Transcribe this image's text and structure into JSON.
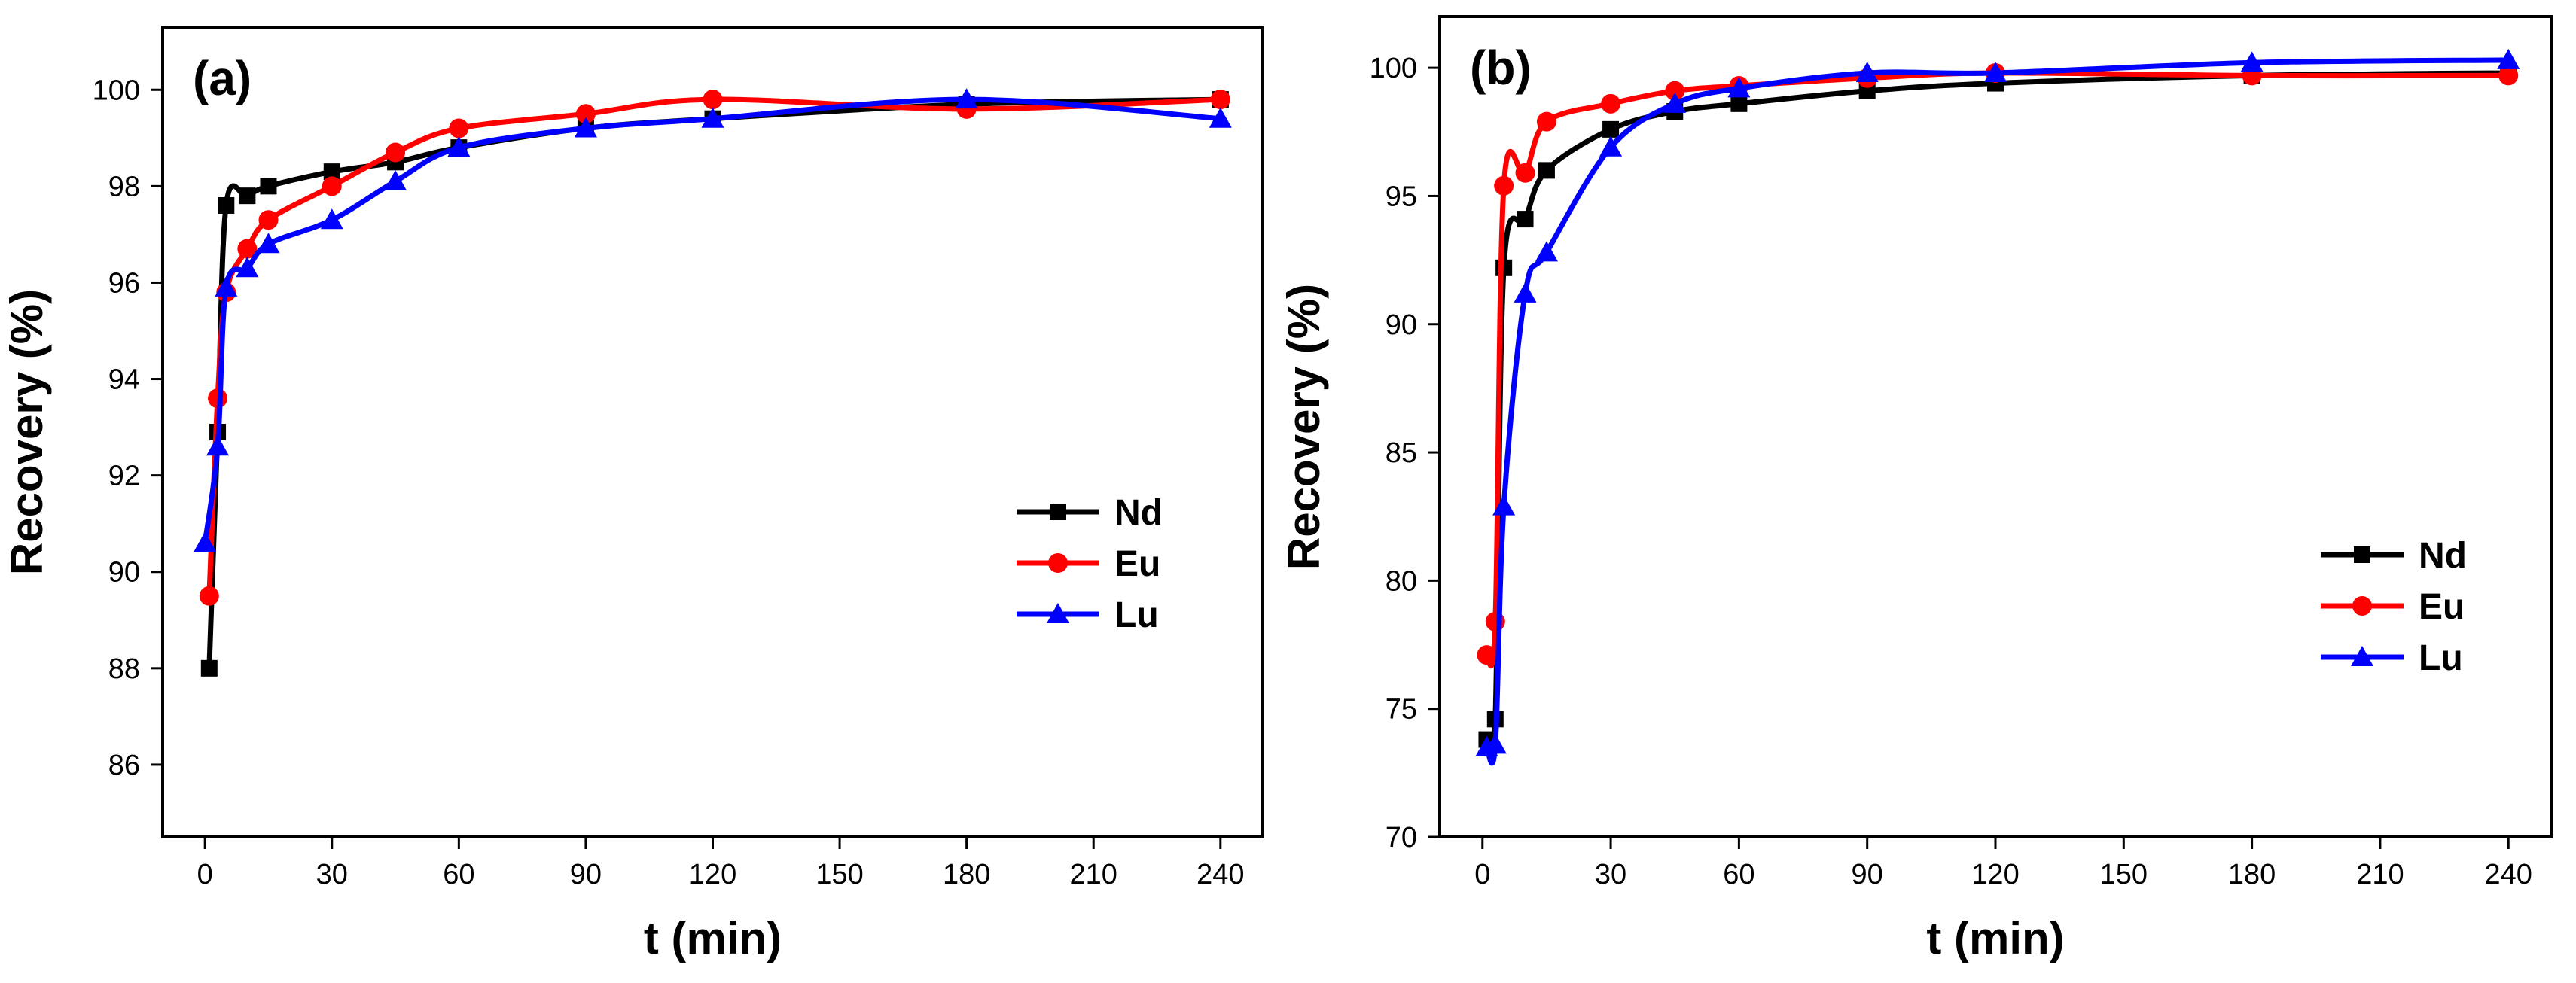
{
  "colors": {
    "Nd": "#000000",
    "Eu": "#ff0000",
    "Lu": "#0000ff",
    "axis": "#000000",
    "background": "#ffffff"
  },
  "markers": {
    "Nd": "square",
    "Eu": "circle",
    "Lu": "triangle"
  },
  "chart_data": [
    {
      "type": "line",
      "panel_label": "(a)",
      "xlabel": "t (min)",
      "ylabel": "Recovery (%)",
      "xlim": [
        -10,
        250
      ],
      "ylim": [
        84.5,
        101.3
      ],
      "xticks": [
        0,
        30,
        60,
        90,
        120,
        150,
        180,
        210,
        240
      ],
      "yticks": [
        86,
        88,
        90,
        92,
        94,
        96,
        98,
        100
      ],
      "legend_position": "center-right",
      "series": [
        {
          "name": "Nd",
          "x": [
            1,
            3,
            5,
            10,
            15,
            30,
            45,
            60,
            90,
            120,
            180,
            240
          ],
          "y": [
            88.0,
            92.9,
            97.6,
            97.8,
            98.0,
            98.3,
            98.5,
            98.8,
            99.2,
            99.4,
            99.7,
            99.8
          ]
        },
        {
          "name": "Eu",
          "x": [
            1,
            3,
            5,
            10,
            15,
            30,
            45,
            60,
            90,
            120,
            180,
            240
          ],
          "y": [
            89.5,
            93.6,
            95.8,
            96.7,
            97.3,
            98.0,
            98.7,
            99.2,
            99.5,
            99.8,
            99.6,
            99.8
          ]
        },
        {
          "name": "Lu",
          "x": [
            0,
            3,
            5,
            10,
            15,
            30,
            45,
            60,
            90,
            120,
            180,
            240
          ],
          "y": [
            90.6,
            92.6,
            95.9,
            96.3,
            96.8,
            97.3,
            98.1,
            98.8,
            99.2,
            99.4,
            99.8,
            99.4
          ]
        }
      ]
    },
    {
      "type": "line",
      "panel_label": "(b)",
      "xlabel": "t (min)",
      "ylabel": "Recovery (%)",
      "xlim": [
        -10,
        250
      ],
      "ylim": [
        70,
        102
      ],
      "xticks": [
        0,
        30,
        60,
        90,
        120,
        150,
        180,
        210,
        240
      ],
      "yticks": [
        70,
        75,
        80,
        85,
        90,
        95,
        100
      ],
      "legend_position": "lower-right",
      "series": [
        {
          "name": "Nd",
          "x": [
            1,
            3,
            5,
            10,
            15,
            30,
            45,
            60,
            90,
            120,
            180,
            240
          ],
          "y": [
            73.8,
            74.6,
            92.2,
            94.1,
            96.0,
            97.6,
            98.3,
            98.6,
            99.1,
            99.4,
            99.7,
            99.8
          ]
        },
        {
          "name": "Eu",
          "x": [
            1,
            3,
            5,
            10,
            15,
            30,
            45,
            60,
            90,
            120,
            180,
            240
          ],
          "y": [
            77.1,
            78.4,
            95.4,
            95.9,
            97.9,
            98.6,
            99.1,
            99.3,
            99.6,
            99.8,
            99.7,
            99.7
          ]
        },
        {
          "name": "Lu",
          "x": [
            1,
            3,
            5,
            10,
            15,
            30,
            45,
            60,
            90,
            120,
            180,
            240
          ],
          "y": [
            73.5,
            73.6,
            82.9,
            91.2,
            92.8,
            96.9,
            98.6,
            99.2,
            99.8,
            99.8,
            100.2,
            100.3
          ]
        }
      ]
    }
  ]
}
